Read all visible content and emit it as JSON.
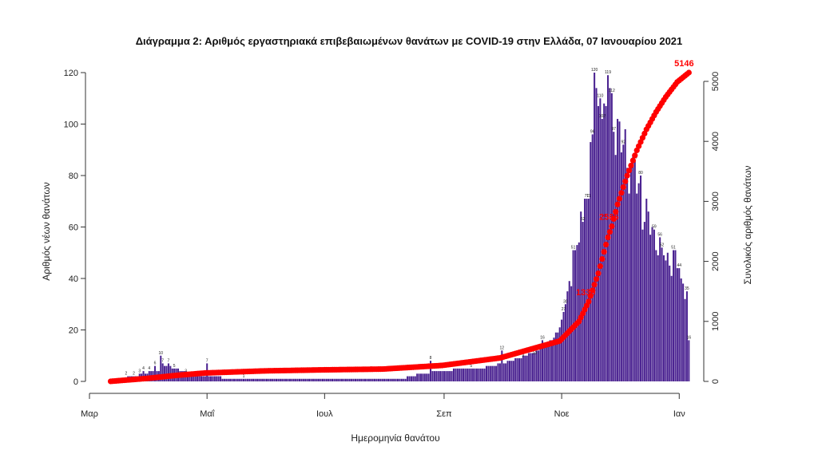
{
  "chart_data": {
    "type": "bar",
    "title": "Διάγραμμα 2: Αριθμός εργαστηριακά επιβεβαιωμένων θανάτων με COVID-19 στην Ελλάδα, 07 Ιανουαρίου 2021",
    "xlabel": "Ημερομηνία θανάτου",
    "ylabel": "Αριθμός νέων θανάτων",
    "y2label": "Συνολικός αριθμός θανάτων",
    "x_start": "2020-03-12",
    "x_end": "2021-01-06",
    "x_ticks": [
      {
        "date": "2020-03-01",
        "label": "Μαρ"
      },
      {
        "date": "2020-05-01",
        "label": "Μαΐ"
      },
      {
        "date": "2020-07-01",
        "label": "Ιουλ"
      },
      {
        "date": "2020-09-01",
        "label": "Σεπ"
      },
      {
        "date": "2020-11-01",
        "label": "Νοε"
      },
      {
        "date": "2021-01-01",
        "label": "Ιαν"
      }
    ],
    "y_ticks": [
      0,
      20,
      40,
      60,
      80,
      100,
      120
    ],
    "ylim": [
      0,
      120
    ],
    "y2_ticks": [
      0,
      1000,
      2000,
      3000,
      4000,
      5000
    ],
    "y2lim": [
      0,
      5146
    ],
    "bar_color": "#4b2391",
    "line_color": "#ff0000",
    "daily_knots": [
      [
        "2020-03-12",
        1
      ],
      [
        "2020-03-18",
        1
      ],
      [
        "2020-03-24",
        2
      ],
      [
        "2020-03-30",
        3
      ],
      [
        "2020-04-05",
        4
      ],
      [
        "2020-04-10",
        6
      ],
      [
        "2020-04-14",
        5
      ],
      [
        "2020-04-18",
        4
      ],
      [
        "2020-04-22",
        3
      ],
      [
        "2020-04-28",
        2
      ],
      [
        "2020-05-05",
        2
      ],
      [
        "2020-05-12",
        1
      ],
      [
        "2020-05-20",
        1
      ],
      [
        "2020-06-01",
        1
      ],
      [
        "2020-06-15",
        1
      ],
      [
        "2020-07-01",
        1
      ],
      [
        "2020-07-15",
        1
      ],
      [
        "2020-08-01",
        1
      ],
      [
        "2020-08-10",
        1
      ],
      [
        "2020-08-20",
        3
      ],
      [
        "2020-09-01",
        4
      ],
      [
        "2020-09-10",
        5
      ],
      [
        "2020-09-20",
        5
      ],
      [
        "2020-10-01",
        7
      ],
      [
        "2020-10-10",
        9
      ],
      [
        "2020-10-20",
        12
      ],
      [
        "2020-10-28",
        17
      ],
      [
        "2020-11-02",
        25
      ],
      [
        "2020-11-05",
        35
      ],
      [
        "2020-11-08",
        50
      ],
      [
        "2020-11-11",
        62
      ],
      [
        "2020-11-14",
        78
      ],
      [
        "2020-11-17",
        95
      ],
      [
        "2020-11-20",
        104
      ],
      [
        "2020-11-23",
        107
      ],
      [
        "2020-11-26",
        105
      ],
      [
        "2020-11-29",
        100
      ],
      [
        "2020-12-02",
        92
      ],
      [
        "2020-12-05",
        88
      ],
      [
        "2020-12-08",
        80
      ],
      [
        "2020-12-11",
        72
      ],
      [
        "2020-12-14",
        66
      ],
      [
        "2020-12-17",
        60
      ],
      [
        "2020-12-20",
        56
      ],
      [
        "2020-12-23",
        52
      ],
      [
        "2020-12-26",
        48
      ],
      [
        "2020-12-29",
        45
      ],
      [
        "2021-01-01",
        42
      ],
      [
        "2021-01-04",
        35
      ],
      [
        "2021-01-06",
        16
      ]
    ],
    "daily_overrides": [
      [
        "2020-03-27",
        3
      ],
      [
        "2020-03-29",
        4
      ],
      [
        "2020-04-01",
        4
      ],
      [
        "2020-04-04",
        6
      ],
      [
        "2020-04-07",
        10
      ],
      [
        "2020-04-08",
        7
      ],
      [
        "2020-04-11",
        7
      ],
      [
        "2020-05-01",
        7
      ],
      [
        "2020-08-25",
        8
      ],
      [
        "2020-10-01",
        12
      ],
      [
        "2020-10-22",
        16
      ],
      [
        "2020-11-02",
        27
      ],
      [
        "2020-11-03",
        30
      ],
      [
        "2020-11-07",
        51
      ],
      [
        "2020-11-08",
        51
      ],
      [
        "2020-11-12",
        62
      ],
      [
        "2020-11-14",
        71
      ],
      [
        "2020-11-15",
        71
      ],
      [
        "2020-11-17",
        96
      ],
      [
        "2020-11-18",
        120
      ],
      [
        "2020-11-21",
        110
      ],
      [
        "2020-11-22",
        102
      ],
      [
        "2020-11-23",
        108
      ],
      [
        "2020-11-25",
        119
      ],
      [
        "2020-11-27",
        112
      ],
      [
        "2020-11-28",
        97
      ],
      [
        "2020-12-03",
        92
      ],
      [
        "2020-12-09",
        86
      ],
      [
        "2020-12-12",
        80
      ],
      [
        "2020-12-19",
        59
      ],
      [
        "2020-12-22",
        56
      ],
      [
        "2020-12-23",
        52
      ],
      [
        "2020-12-29",
        51
      ],
      [
        "2021-01-01",
        44
      ],
      [
        "2021-01-05",
        35
      ],
      [
        "2021-01-06",
        16
      ]
    ],
    "cumulative_knots": [
      [
        "2020-03-12",
        1
      ],
      [
        "2020-03-31",
        50
      ],
      [
        "2020-04-15",
        100
      ],
      [
        "2020-04-30",
        140
      ],
      [
        "2020-05-31",
        175
      ],
      [
        "2020-06-30",
        192
      ],
      [
        "2020-07-31",
        205
      ],
      [
        "2020-08-31",
        266
      ],
      [
        "2020-09-30",
        391
      ],
      [
        "2020-10-31",
        673
      ],
      [
        "2020-11-10",
        1000
      ],
      [
        "2020-11-15",
        1330
      ],
      [
        "2020-11-20",
        1800
      ],
      [
        "2020-11-25",
        2400
      ],
      [
        "2020-11-27",
        2585
      ],
      [
        "2020-11-30",
        2950
      ],
      [
        "2020-12-05",
        3430
      ],
      [
        "2020-12-10",
        3850
      ],
      [
        "2020-12-15",
        4200
      ],
      [
        "2020-12-20",
        4490
      ],
      [
        "2020-12-25",
        4740
      ],
      [
        "2020-12-31",
        4990
      ],
      [
        "2021-01-06",
        5146
      ]
    ],
    "cumulative_labels": [
      {
        "date": "2020-11-16",
        "value": 1330,
        "label": "1330"
      },
      {
        "date": "2020-11-28",
        "value": 2585,
        "label": "2585"
      },
      {
        "date": "2021-01-06",
        "value": 5146,
        "label": "5146"
      }
    ],
    "bar_value_labels": [
      [
        "2020-03-20",
        "2"
      ],
      [
        "2020-03-24",
        "2"
      ],
      [
        "2020-03-27",
        "3"
      ],
      [
        "2020-03-29",
        "4"
      ],
      [
        "2020-04-01",
        "4"
      ],
      [
        "2020-04-04",
        "6"
      ],
      [
        "2020-04-07",
        "10"
      ],
      [
        "2020-04-08",
        "7"
      ],
      [
        "2020-04-11",
        "7"
      ],
      [
        "2020-04-14",
        "5"
      ],
      [
        "2020-04-20",
        "3"
      ],
      [
        "2020-05-01",
        "7"
      ],
      [
        "2020-05-10",
        "2"
      ],
      [
        "2020-05-20",
        "1"
      ],
      [
        "2020-07-25",
        "4"
      ],
      [
        "2020-08-25",
        "8"
      ],
      [
        "2020-09-08",
        "6"
      ],
      [
        "2020-09-15",
        "5"
      ],
      [
        "2020-09-25",
        "7"
      ],
      [
        "2020-10-01",
        "12"
      ],
      [
        "2020-10-12",
        "9"
      ],
      [
        "2020-10-18",
        "10"
      ],
      [
        "2020-10-22",
        "16"
      ],
      [
        "2020-10-28",
        "14"
      ],
      [
        "2020-11-02",
        "27"
      ],
      [
        "2020-11-03",
        "30"
      ],
      [
        "2020-11-07",
        "51"
      ],
      [
        "2020-11-12",
        "62"
      ],
      [
        "2020-11-14",
        "71"
      ],
      [
        "2020-11-15",
        "71"
      ],
      [
        "2020-11-17",
        "96"
      ],
      [
        "2020-11-18",
        "120"
      ],
      [
        "2020-11-21",
        "110"
      ],
      [
        "2020-11-22",
        "102"
      ],
      [
        "2020-11-25",
        "119"
      ],
      [
        "2020-11-27",
        "112"
      ],
      [
        "2020-11-28",
        "97"
      ],
      [
        "2020-12-03",
        "92"
      ],
      [
        "2020-12-09",
        "86"
      ],
      [
        "2020-12-12",
        "80"
      ],
      [
        "2020-12-19",
        "59"
      ],
      [
        "2020-12-22",
        "56"
      ],
      [
        "2020-12-23",
        "52"
      ],
      [
        "2020-12-29",
        "51"
      ],
      [
        "2021-01-01",
        "44"
      ],
      [
        "2021-01-05",
        "35"
      ],
      [
        "2021-01-06",
        "16"
      ]
    ]
  }
}
